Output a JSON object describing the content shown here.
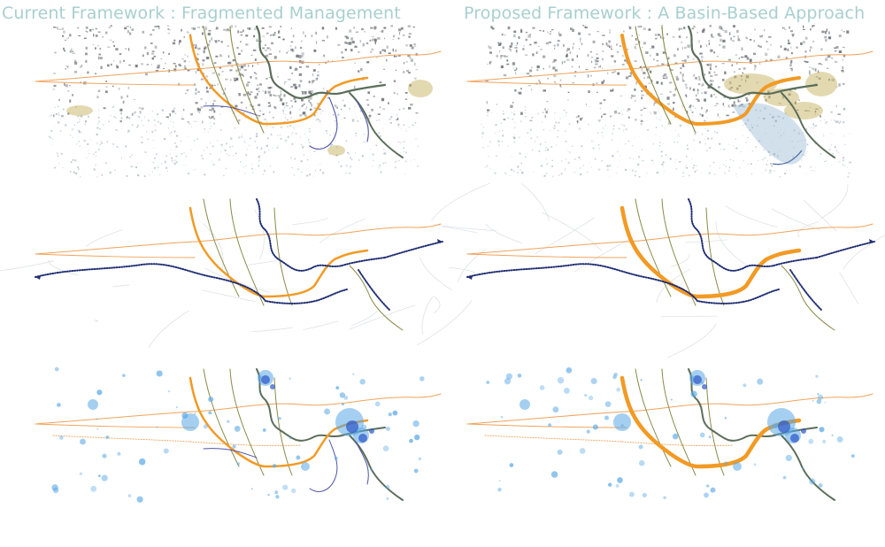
{
  "titles": {
    "left": "Current Framework : Fragmented Management",
    "right": "Proposed Framework : A Basin-Based Approach"
  },
  "colors": {
    "title": "#a9cfcf",
    "highway": "#f0a35a",
    "basin_road": "#f29a24",
    "river_navy": "#1f2e72",
    "river_olive": "#8a8a48",
    "river_dark": "#5a6e5a",
    "levee_purple": "#5054a8",
    "urban_gray": "#6d7177",
    "marsh_gold": "#c2ab52",
    "population_blue": "#5aa8e6",
    "population_dark": "#2c56c8"
  },
  "panels": [
    {
      "name": "current-urban-landscape",
      "framework": "current",
      "layer": "urban-landscape"
    },
    {
      "name": "proposed-urban-landscape",
      "framework": "proposed",
      "layer": "urban-landscape"
    },
    {
      "name": "current-networks",
      "framework": "current",
      "layer": "networks"
    },
    {
      "name": "proposed-networks",
      "framework": "proposed",
      "layer": "networks"
    },
    {
      "name": "current-population",
      "framework": "current",
      "layer": "population"
    },
    {
      "name": "proposed-population",
      "framework": "proposed",
      "layer": "population"
    }
  ]
}
